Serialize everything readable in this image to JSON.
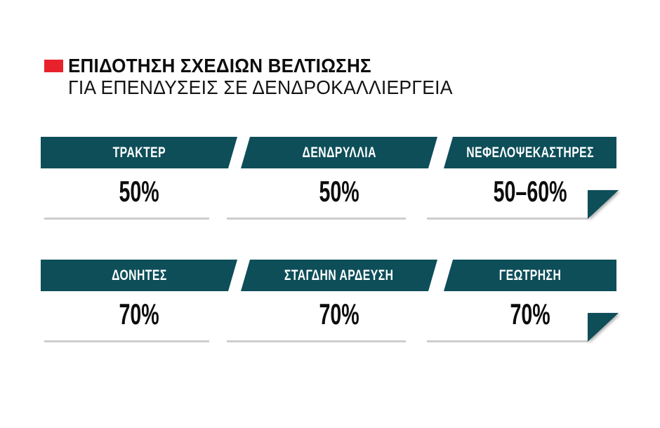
{
  "header": {
    "title": "ΕΠΙΔΟΤΗΣΗ ΣΧΕΔΙΩΝ ΒΕΛΤΙΩΣΗΣ",
    "subtitle": "ΓΙΑ ΕΠΕΝΔΥΣΕΙΣ ΣΕ ΔΕΝΔΡΟΚΑΛΛΙΕΡΓΕΙΑ",
    "accent_color": "#e8222c"
  },
  "theme": {
    "banner_color": "#0d4e59",
    "underline_color": "#cdcdcd",
    "background_color": "#ffffff",
    "text_color": "#0d0d0d"
  },
  "rows": [
    {
      "cells": [
        {
          "label": "ΤΡΑΚΤΕΡ",
          "value": "50%"
        },
        {
          "label": "ΔΕΝΔΡΥΛΛΙΑ",
          "value": "50%"
        },
        {
          "label": "ΝΕΦΕΛΟΨΕΚΑΣΤΗΡΕΣ",
          "value": "50–60%"
        }
      ]
    },
    {
      "cells": [
        {
          "label": "ΔΟΝΗΤΕΣ",
          "value": "70%"
        },
        {
          "label": "ΣΤΑΓΔΗΝ ΑΡΔΕΥΣΗ",
          "value": "70%"
        },
        {
          "label": "ΓΕΩΤΡΗΣΗ",
          "value": "70%"
        }
      ]
    }
  ],
  "chart_data": {
    "type": "table",
    "title": "ΕΠΙΔΟΤΗΣΗ ΣΧΕΔΙΩΝ ΒΕΛΤΙΩΣΗΣ ΓΙΑ ΕΠΕΝΔΥΣΕΙΣ ΣΕ ΔΕΝΔΡΟΚΑΛΛΙΕΡΓΕΙΑ",
    "categories": [
      "ΤΡΑΚΤΕΡ",
      "ΔΕΝΔΡΥΛΛΙΑ",
      "ΝΕΦΕΛΟΨΕΚΑΣΤΗΡΕΣ",
      "ΔΟΝΗΤΕΣ",
      "ΣΤΑΓΔΗΝ ΑΡΔΕΥΣΗ",
      "ΓΕΩΤΡΗΣΗ"
    ],
    "values": [
      "50%",
      "50%",
      "50–60%",
      "70%",
      "70%",
      "70%"
    ],
    "unit": "percent subsidy"
  }
}
